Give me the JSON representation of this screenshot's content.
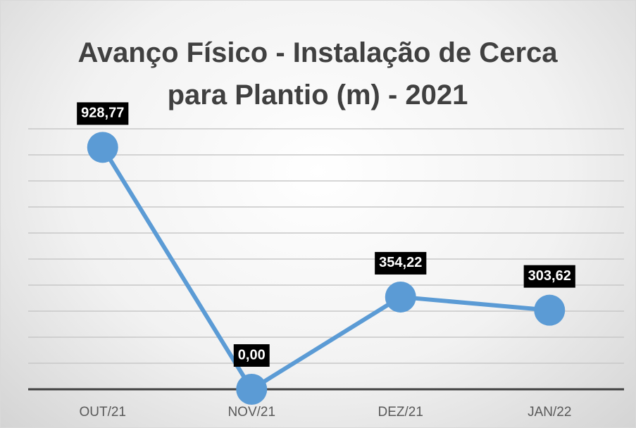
{
  "chart_data": {
    "type": "line",
    "title": "Avanço Físico - Instalação de Cerca para Plantio (m) - 2021",
    "categories": [
      "OUT/21",
      "NOV/21",
      "DEZ/21",
      "JAN/22"
    ],
    "series": [
      {
        "name": "Instalação de Cerca",
        "color": "#5b9bd5",
        "values": [
          928.77,
          0,
          354.22,
          303.62
        ],
        "value_labels": [
          "928,77",
          "0,00",
          "354,22",
          "303,62"
        ]
      }
    ],
    "ylim": [
      0,
      1000
    ],
    "yticks": [
      0,
      100,
      200,
      300,
      400,
      500,
      600,
      700,
      800,
      900,
      1000
    ],
    "grid": true
  }
}
